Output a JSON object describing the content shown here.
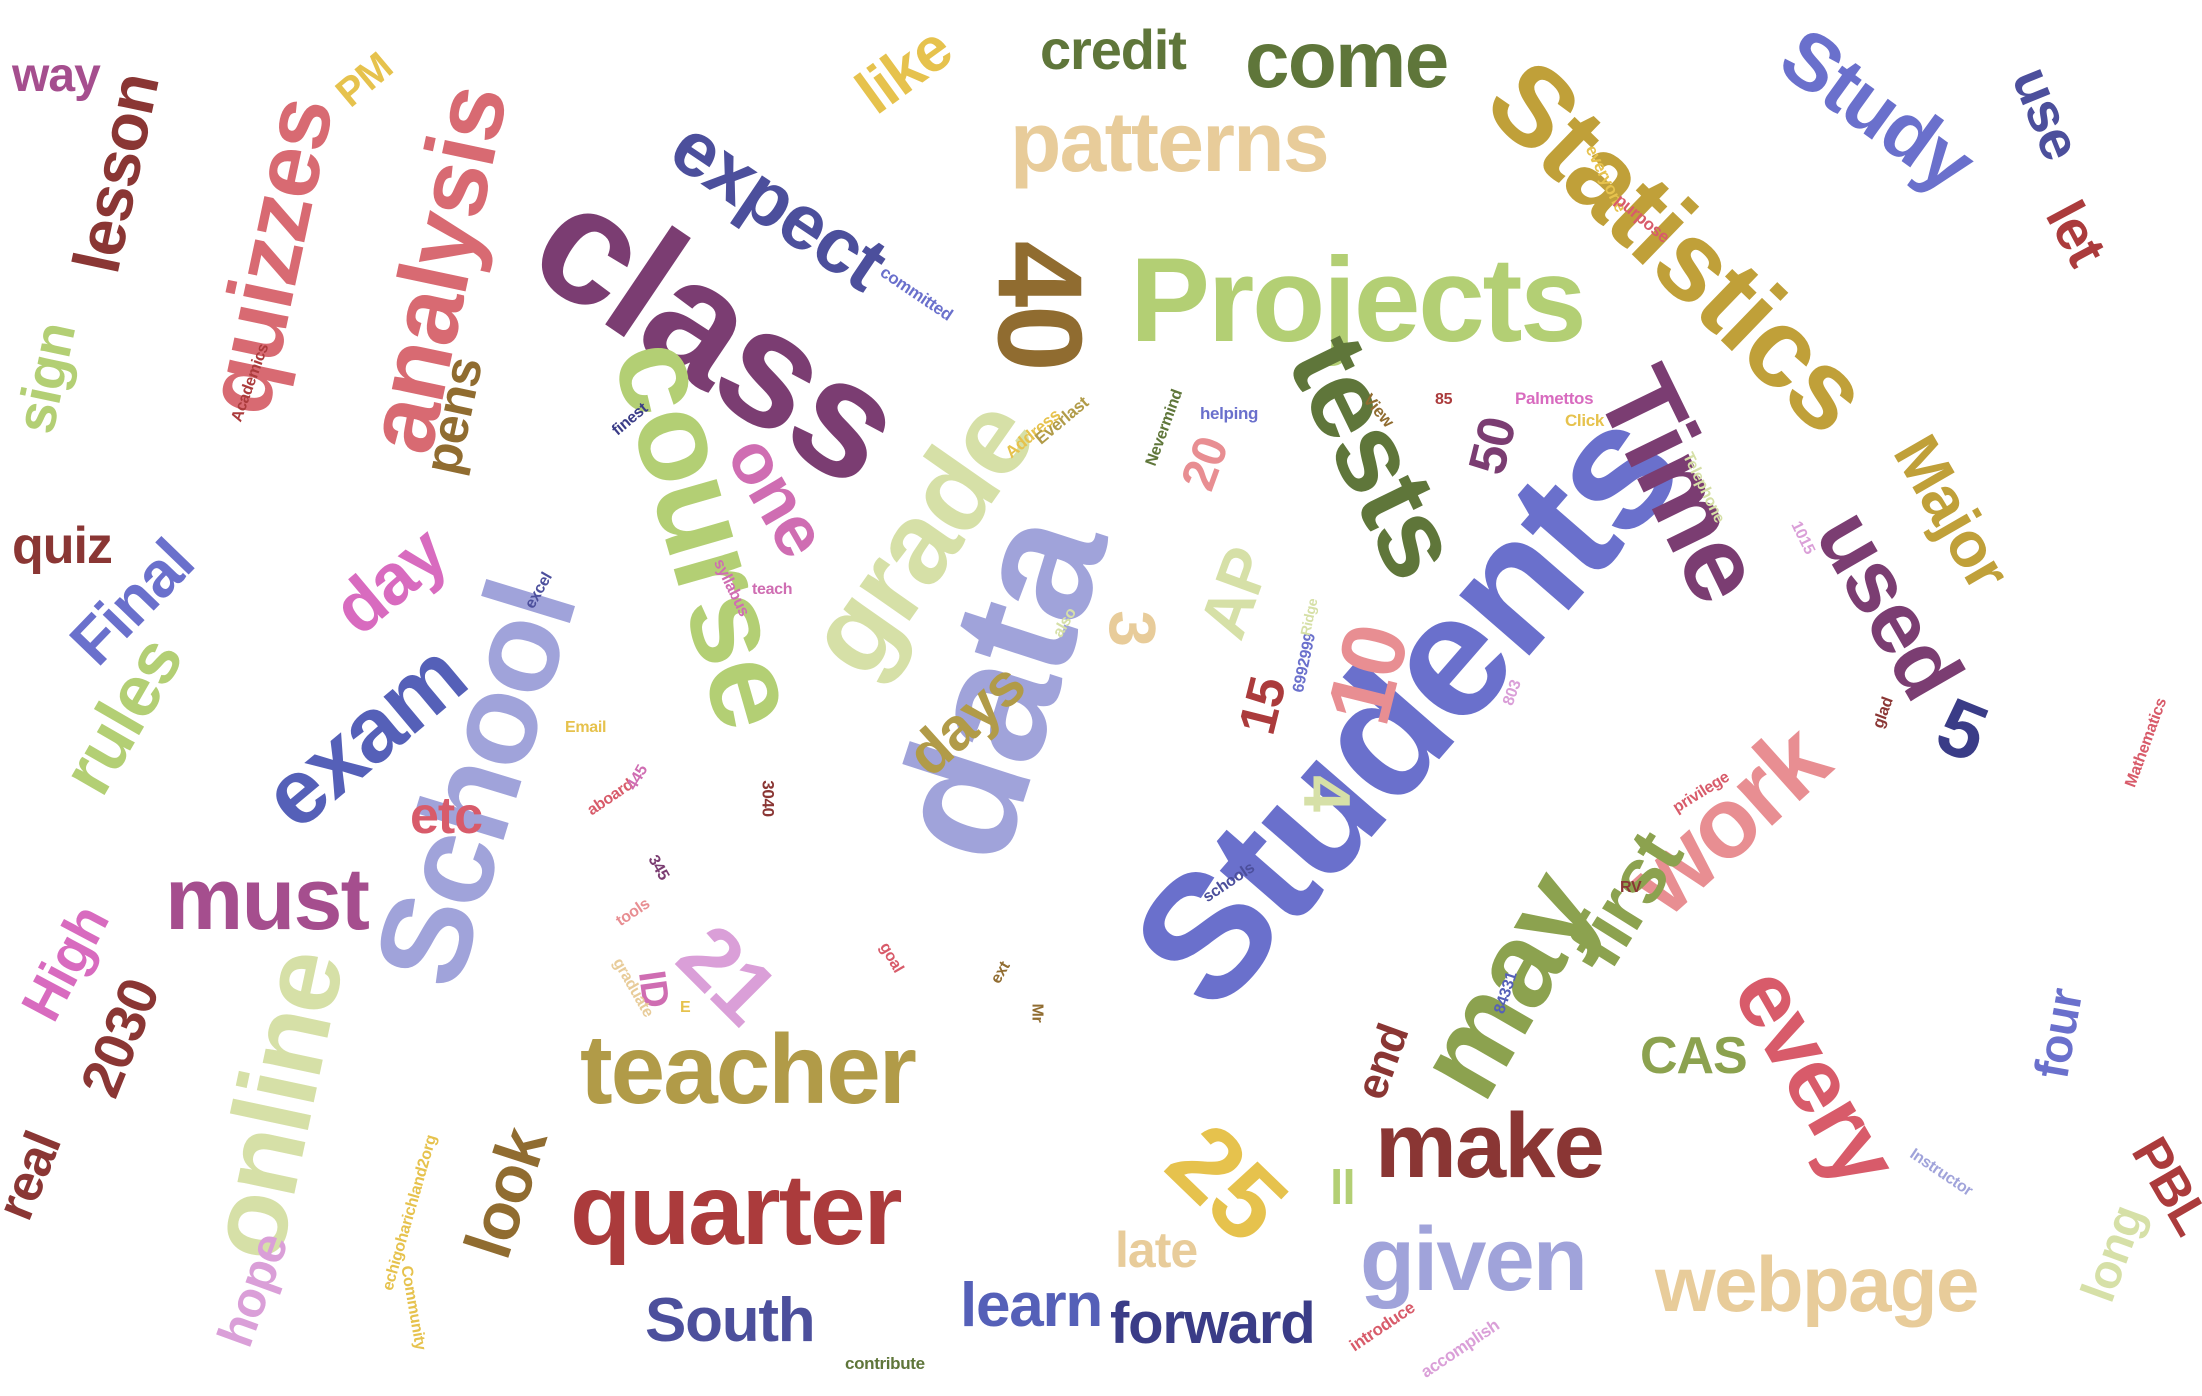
{
  "words": [
    {
      "text": "Students",
      "color": "#6a70cc"
    },
    {
      "text": "data",
      "color": "#a0a3da"
    },
    {
      "text": "class",
      "color": "#7b3d72"
    },
    {
      "text": "Statistics",
      "color": "#c0a039"
    },
    {
      "text": "Projects",
      "color": "#b3cf74"
    },
    {
      "text": "course",
      "color": "#b3cf74"
    },
    {
      "text": "School",
      "color": "#a0a3da"
    },
    {
      "text": "grade",
      "color": "#d6e0a7"
    },
    {
      "text": "tests",
      "color": "#5f763a"
    },
    {
      "text": "Time",
      "color": "#7b3d72"
    },
    {
      "text": "analysis",
      "color": "#d86a72"
    },
    {
      "text": "patterns",
      "color": "#e8cc9a"
    },
    {
      "text": "40",
      "color": "#906c30"
    },
    {
      "text": "quizzes",
      "color": "#d86a72"
    },
    {
      "text": "teacher",
      "color": "#b19b48"
    },
    {
      "text": "quarter",
      "color": "#ab3b3c"
    },
    {
      "text": "work",
      "color": "#e88e92"
    },
    {
      "text": "may",
      "color": "#8ca24f"
    },
    {
      "text": "every",
      "color": "#d85b6a"
    },
    {
      "text": "make",
      "color": "#8a3634"
    },
    {
      "text": "online",
      "color": "#d6e0a7"
    },
    {
      "text": "exam",
      "color": "#5560b8"
    },
    {
      "text": "must",
      "color": "#a54e8e"
    },
    {
      "text": "come",
      "color": "#5f763a"
    },
    {
      "text": "expect",
      "color": "#4c4f9c"
    },
    {
      "text": "Study",
      "color": "#6a70cc"
    },
    {
      "text": "given",
      "color": "#a0a3da"
    },
    {
      "text": "webpage",
      "color": "#e8cc9a"
    },
    {
      "text": "25",
      "color": "#e6c24d"
    },
    {
      "text": "used",
      "color": "#7b3d72"
    },
    {
      "text": "first",
      "color": "#8ca24f"
    },
    {
      "text": "Major",
      "color": "#c0a039"
    },
    {
      "text": "10",
      "color": "#e88e92"
    },
    {
      "text": "21",
      "color": "#da9fd8"
    },
    {
      "text": "one",
      "color": "#cf6db2"
    },
    {
      "text": "day",
      "color": "#d86bbf"
    },
    {
      "text": "rules",
      "color": "#b3cf74"
    },
    {
      "text": "lesson",
      "color": "#8a3634"
    },
    {
      "text": "like",
      "color": "#e6c24d"
    },
    {
      "text": "credit",
      "color": "#5f763a"
    },
    {
      "text": "use",
      "color": "#4c4f9c"
    },
    {
      "text": "let",
      "color": "#ab3b3c"
    },
    {
      "text": "5",
      "color": "#3a3c87"
    },
    {
      "text": "days",
      "color": "#b19b48"
    },
    {
      "text": "AP",
      "color": "#d6e0a7"
    },
    {
      "text": "3",
      "color": "#e8cc9a"
    },
    {
      "text": "4",
      "color": "#d6e0a7"
    },
    {
      "text": "15",
      "color": "#ab3b3c"
    },
    {
      "text": "20",
      "color": "#e88e92"
    },
    {
      "text": "50",
      "color": "#7b3d72"
    },
    {
      "text": "Final",
      "color": "#6a70cc"
    },
    {
      "text": "sign",
      "color": "#b3cf74"
    },
    {
      "text": "pens",
      "color": "#906c30"
    },
    {
      "text": "way",
      "color": "#a54e8e"
    },
    {
      "text": "PM",
      "color": "#e6c24d"
    },
    {
      "text": "quiz",
      "color": "#8a3634"
    },
    {
      "text": "etc",
      "color": "#d85b6a"
    },
    {
      "text": "High",
      "color": "#d86bbf"
    },
    {
      "text": "2030",
      "color": "#8a3634"
    },
    {
      "text": "real",
      "color": "#8a3634"
    },
    {
      "text": "hope",
      "color": "#da9fd8"
    },
    {
      "text": "look",
      "color": "#906c30"
    },
    {
      "text": "late",
      "color": "#e8cc9a"
    },
    {
      "text": "ll",
      "color": "#b3cf74"
    },
    {
      "text": "end",
      "color": "#8a3634"
    },
    {
      "text": "CAS",
      "color": "#8ca24f"
    },
    {
      "text": "four",
      "color": "#6a70cc"
    },
    {
      "text": "long",
      "color": "#d6e0a7"
    },
    {
      "text": "PBL",
      "color": "#ab3b3c"
    },
    {
      "text": "South",
      "color": "#4c4f9c"
    },
    {
      "text": "learn",
      "color": "#5560b8"
    },
    {
      "text": "forward",
      "color": "#3a3c87"
    },
    {
      "text": "ID",
      "color": "#cf6db2"
    },
    {
      "text": "E",
      "color": "#e6c24d"
    },
    {
      "text": "committed",
      "color": "#6a70cc"
    },
    {
      "text": "finest",
      "color": "#3a3c87"
    },
    {
      "text": "Academics",
      "color": "#ab3b3c"
    },
    {
      "text": "syllabus",
      "color": "#cf6db2"
    },
    {
      "text": "teach",
      "color": "#cf6db2"
    },
    {
      "text": "excel",
      "color": "#4c4f9c"
    },
    {
      "text": "Address",
      "color": "#e6c24d"
    },
    {
      "text": "Everlast",
      "color": "#b19b48"
    },
    {
      "text": "also",
      "color": "#d6e0a7"
    },
    {
      "text": "Email",
      "color": "#e6c24d"
    },
    {
      "text": "aboard",
      "color": "#d85b6a"
    },
    {
      "text": "445",
      "color": "#cf6db2"
    },
    {
      "text": "345",
      "color": "#7b3d72"
    },
    {
      "text": "3040",
      "color": "#8a3634"
    },
    {
      "text": "tools",
      "color": "#e88e92"
    },
    {
      "text": "graduate",
      "color": "#e8cc9a"
    },
    {
      "text": "goal",
      "color": "#d85b6a"
    },
    {
      "text": "ext",
      "color": "#906c30"
    },
    {
      "text": "Mr",
      "color": "#906c30"
    },
    {
      "text": "Nevermind",
      "color": "#5f763a"
    },
    {
      "text": "helping",
      "color": "#6a70cc"
    },
    {
      "text": "View",
      "color": "#906c30"
    },
    {
      "text": "85",
      "color": "#ab3b3c"
    },
    {
      "text": "Palmettos",
      "color": "#d86bbf"
    },
    {
      "text": "Click",
      "color": "#e6c24d"
    },
    {
      "text": "6992999",
      "color": "#6a70cc"
    },
    {
      "text": "Ridge",
      "color": "#d6e0a7"
    },
    {
      "text": "everyone",
      "color": "#e6c24d"
    },
    {
      "text": "purpose",
      "color": "#d85b6a"
    },
    {
      "text": "Telephone",
      "color": "#d6e0a7"
    },
    {
      "text": "1015",
      "color": "#da9fd8"
    },
    {
      "text": "803",
      "color": "#da9fd8"
    },
    {
      "text": "glad",
      "color": "#8a3634"
    },
    {
      "text": "Mathematics",
      "color": "#d85b6a"
    },
    {
      "text": "privilege",
      "color": "#d85b6a"
    },
    {
      "text": "schools",
      "color": "#4c4f9c"
    },
    {
      "text": "RV",
      "color": "#8a3634"
    },
    {
      "text": "84331",
      "color": "#5560b8"
    },
    {
      "text": "Instructor",
      "color": "#a0a3da"
    },
    {
      "text": "echigoharichland2org",
      "color": "#e6c24d"
    },
    {
      "text": "Community",
      "color": "#e6c24d"
    },
    {
      "text": "contribute",
      "color": "#5f763a"
    },
    {
      "text": "introduce",
      "color": "#d85b6a"
    },
    {
      "text": "accomplish",
      "color": "#da9fd8"
    }
  ]
}
